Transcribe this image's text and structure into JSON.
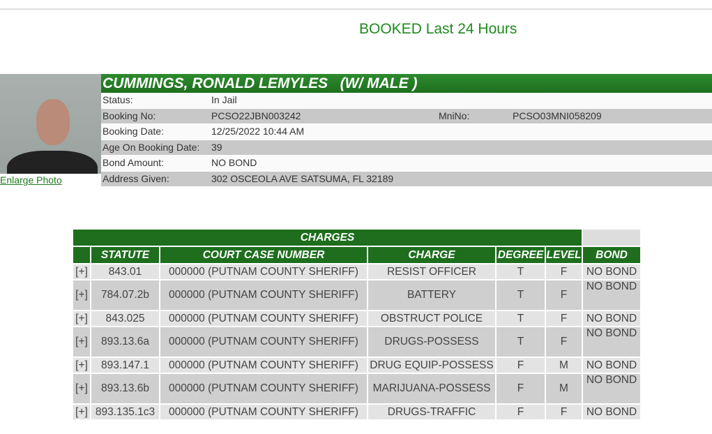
{
  "page": {
    "heading": "BOOKED Last 24 Hours"
  },
  "inmate": {
    "name": "CUMMINGS, RONALD LEMYLES   (W/ MALE )",
    "enlarge_photo": "Enlarge Photo",
    "fields": [
      {
        "label": "Status:",
        "value": "In Jail"
      },
      {
        "label": "Booking No:",
        "value": "PCSO22JBN003242",
        "label2": "MniNo:",
        "value2": "PCSO03MNI058209"
      },
      {
        "label": "Booking Date:",
        "value": "12/25/2022 10:44 AM"
      },
      {
        "label": "Age On Booking Date:",
        "value": "39"
      },
      {
        "label": "Bond Amount:",
        "value": "NO BOND"
      },
      {
        "label": "Address Given:",
        "value": "302 OSCEOLA AVE SATSUMA, FL 32189"
      }
    ]
  },
  "charges": {
    "title": "CHARGES",
    "columns": [
      "",
      "STATUTE",
      "COURT CASE NUMBER",
      "CHARGE",
      "DEGREE",
      "LEVEL",
      "BOND"
    ],
    "rows": [
      {
        "expand": "[+]",
        "statute": "843.01",
        "case": "000000 (PUTNAM COUNTY SHERIFF)",
        "charge": "RESIST OFFICER",
        "degree": "T",
        "level": "F",
        "bond": "NO BOND"
      },
      {
        "expand": "[+]",
        "statute": "784.07.2b",
        "case": "000000 (PUTNAM COUNTY SHERIFF)",
        "charge": "BATTERY",
        "degree": "T",
        "level": "F",
        "bond": "NO BOND"
      },
      {
        "expand": "[+]",
        "statute": "843.025",
        "case": "000000 (PUTNAM COUNTY SHERIFF)",
        "charge": "OBSTRUCT POLICE",
        "degree": "T",
        "level": "F",
        "bond": "NO BOND"
      },
      {
        "expand": "[+]",
        "statute": "893.13.6a",
        "case": "000000 (PUTNAM COUNTY SHERIFF)",
        "charge": "DRUGS-POSSESS",
        "degree": "T",
        "level": "F",
        "bond": "NO BOND"
      },
      {
        "expand": "[+]",
        "statute": "893.147.1",
        "case": "000000 (PUTNAM COUNTY SHERIFF)",
        "charge": "DRUG EQUIP-POSSESS",
        "degree": "F",
        "level": "M",
        "bond": "NO BOND"
      },
      {
        "expand": "[+]",
        "statute": "893.13.6b",
        "case": "000000 (PUTNAM COUNTY SHERIFF)",
        "charge": "MARIJUANA-POSSESS",
        "degree": "F",
        "level": "M",
        "bond": "NO BOND"
      },
      {
        "expand": "[+]",
        "statute": "893.135.1c3",
        "case": "000000 (PUTNAM COUNTY SHERIFF)",
        "charge": "DRUGS-TRAFFIC",
        "degree": "F",
        "level": "F",
        "bond": "NO BOND"
      }
    ]
  }
}
